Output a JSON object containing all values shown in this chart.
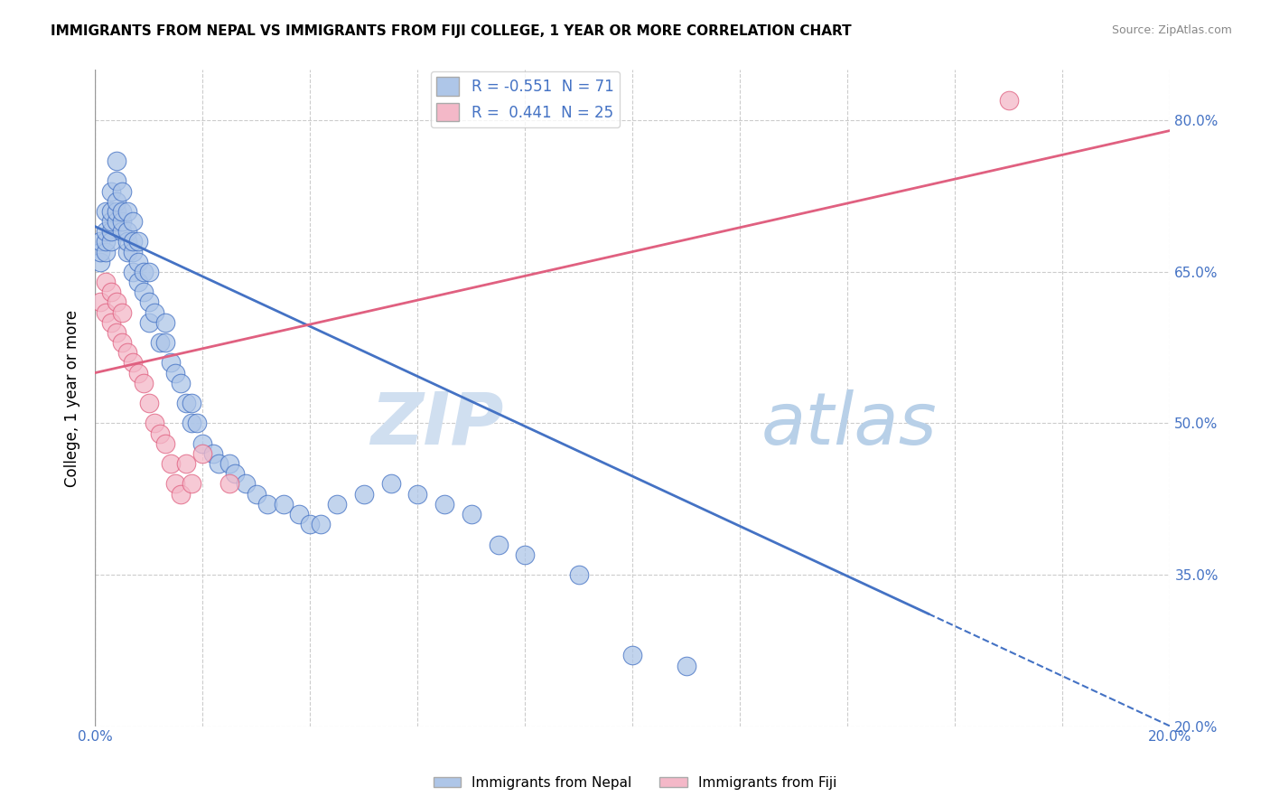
{
  "title": "IMMIGRANTS FROM NEPAL VS IMMIGRANTS FROM FIJI COLLEGE, 1 YEAR OR MORE CORRELATION CHART",
  "source": "Source: ZipAtlas.com",
  "ylabel_label": "College, 1 year or more",
  "legend_label1": "Immigrants from Nepal",
  "legend_label2": "Immigrants from Fiji",
  "R1": -0.551,
  "N1": 71,
  "R2": 0.441,
  "N2": 25,
  "color1": "#aec6e8",
  "color2": "#f4b8c8",
  "line_color1": "#4472c4",
  "line_color2": "#e06080",
  "text_color": "#4472c4",
  "xlim": [
    0.0,
    0.2
  ],
  "ylim": [
    0.2,
    0.85
  ],
  "ytick_values": [
    0.2,
    0.35,
    0.5,
    0.65,
    0.8
  ],
  "ytick_labels": [
    "20.0%",
    "35.0%",
    "50.0%",
    "65.0%",
    "80.0%"
  ],
  "xtick_values": [
    0.0,
    0.02,
    0.04,
    0.06,
    0.08,
    0.1,
    0.12,
    0.14,
    0.16,
    0.18,
    0.2
  ],
  "watermark_zip": "ZIP",
  "watermark_atlas": "atlas",
  "nepal_x": [
    0.001,
    0.001,
    0.001,
    0.002,
    0.002,
    0.002,
    0.002,
    0.003,
    0.003,
    0.003,
    0.003,
    0.003,
    0.004,
    0.004,
    0.004,
    0.004,
    0.004,
    0.005,
    0.005,
    0.005,
    0.005,
    0.006,
    0.006,
    0.006,
    0.006,
    0.007,
    0.007,
    0.007,
    0.007,
    0.008,
    0.008,
    0.008,
    0.009,
    0.009,
    0.01,
    0.01,
    0.01,
    0.011,
    0.012,
    0.013,
    0.013,
    0.014,
    0.015,
    0.016,
    0.017,
    0.018,
    0.018,
    0.019,
    0.02,
    0.022,
    0.023,
    0.025,
    0.026,
    0.028,
    0.03,
    0.032,
    0.035,
    0.038,
    0.04,
    0.042,
    0.045,
    0.05,
    0.055,
    0.06,
    0.065,
    0.07,
    0.075,
    0.08,
    0.09,
    0.1,
    0.11
  ],
  "nepal_y": [
    0.66,
    0.67,
    0.68,
    0.67,
    0.68,
    0.69,
    0.71,
    0.68,
    0.69,
    0.7,
    0.71,
    0.73,
    0.7,
    0.71,
    0.72,
    0.74,
    0.76,
    0.69,
    0.7,
    0.71,
    0.73,
    0.67,
    0.68,
    0.69,
    0.71,
    0.65,
    0.67,
    0.68,
    0.7,
    0.64,
    0.66,
    0.68,
    0.63,
    0.65,
    0.6,
    0.62,
    0.65,
    0.61,
    0.58,
    0.58,
    0.6,
    0.56,
    0.55,
    0.54,
    0.52,
    0.5,
    0.52,
    0.5,
    0.48,
    0.47,
    0.46,
    0.46,
    0.45,
    0.44,
    0.43,
    0.42,
    0.42,
    0.41,
    0.4,
    0.4,
    0.42,
    0.43,
    0.44,
    0.43,
    0.42,
    0.41,
    0.38,
    0.37,
    0.35,
    0.27,
    0.26
  ],
  "fiji_x": [
    0.001,
    0.002,
    0.002,
    0.003,
    0.003,
    0.004,
    0.004,
    0.005,
    0.005,
    0.006,
    0.007,
    0.008,
    0.009,
    0.01,
    0.011,
    0.012,
    0.013,
    0.014,
    0.015,
    0.016,
    0.017,
    0.018,
    0.02,
    0.025,
    0.17
  ],
  "fiji_y": [
    0.62,
    0.61,
    0.64,
    0.6,
    0.63,
    0.59,
    0.62,
    0.58,
    0.61,
    0.57,
    0.56,
    0.55,
    0.54,
    0.52,
    0.5,
    0.49,
    0.48,
    0.46,
    0.44,
    0.43,
    0.46,
    0.44,
    0.47,
    0.44,
    0.82
  ],
  "nepal_line_x0": 0.0,
  "nepal_line_y0": 0.695,
  "nepal_line_x1": 0.2,
  "nepal_line_y1": 0.2,
  "fiji_line_x0": 0.0,
  "fiji_line_y0": 0.55,
  "fiji_line_x1": 0.2,
  "fiji_line_y1": 0.79
}
